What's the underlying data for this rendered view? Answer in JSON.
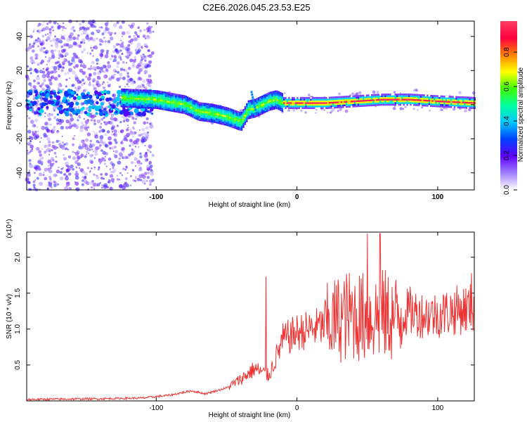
{
  "title": "C2E6.2026.045.23.53.E25",
  "chart_data": [
    {
      "type": "heatmap",
      "name": "spectrogram",
      "xlabel": "Height of straight line (km)",
      "ylabel": "Frequency (Hz)",
      "xlim": [
        -192,
        126
      ],
      "ylim": [
        -50,
        49
      ],
      "xticks": [
        -100,
        0,
        100
      ],
      "xtick_labels": [
        "-100",
        "0",
        "100"
      ],
      "yticks": [
        -40,
        -20,
        0,
        20,
        40
      ],
      "ytick_labels": [
        "-40",
        "-20",
        "0",
        "20",
        "40"
      ],
      "colorbar": {
        "label": "Normalized spectral amplitude",
        "range": [
          0,
          0.98
        ],
        "ticks": [
          0,
          0.2,
          0.4,
          0.6,
          0.8
        ],
        "tick_labels": [
          "0.0",
          "0.2",
          "0.4",
          "0.6",
          "0.8"
        ],
        "colormap": [
          "#ffffff",
          "#a080ff",
          "#6000ff",
          "#0040ff",
          "#00c8ff",
          "#00ffa0",
          "#40ff00",
          "#ffff00",
          "#ff8000",
          "#ff0040",
          "#ff4060"
        ]
      },
      "ridge": {
        "x": [
          -125,
          -100,
          -80,
          -70,
          -60,
          -50,
          -40,
          -35,
          -30,
          -25,
          -20,
          -15,
          -10,
          0,
          20,
          40,
          60,
          80,
          100,
          126
        ],
        "y": [
          4,
          3,
          0,
          -4,
          -5,
          -7,
          -10,
          -3,
          -2,
          0,
          2,
          3,
          1,
          1,
          1,
          2,
          3,
          3,
          2,
          1
        ]
      },
      "spike": {
        "x": -33,
        "y": 8
      }
    },
    {
      "type": "line",
      "name": "snr",
      "xlabel": "Height of straight line (km)",
      "ylabel": "SNR (10 * v/v)",
      "scale_label": "(x10⁴)",
      "xlim": [
        -192,
        126
      ],
      "ylim": [
        0,
        2.35
      ],
      "xticks": [
        -100,
        0,
        100
      ],
      "xtick_labels": [
        "-100",
        "0",
        "100"
      ],
      "yticks": [
        0.5,
        1.0,
        1.5,
        2.0
      ],
      "ytick_labels": [
        "0.5",
        "1.0",
        "1.5",
        "2.0"
      ],
      "color": "#ee3333",
      "series": [
        {
          "name": "SNR",
          "x": [
            -192,
            -140,
            -110,
            -90,
            -75,
            -65,
            -50,
            -40,
            -30,
            -20,
            -10,
            0,
            10,
            20,
            30,
            40,
            50,
            60,
            70,
            80,
            90,
            100,
            110,
            126
          ],
          "y": [
            0.02,
            0.03,
            0.04,
            0.08,
            0.14,
            0.1,
            0.18,
            0.3,
            0.45,
            0.35,
            0.85,
            0.95,
            1.0,
            1.05,
            1.15,
            1.2,
            1.15,
            1.2,
            1.15,
            1.25,
            1.2,
            1.2,
            1.25,
            1.3
          ]
        }
      ],
      "peaks": [
        {
          "x": -22,
          "y": 1.73
        },
        {
          "x": 50,
          "y": 2.33
        },
        {
          "x": 59,
          "y": 2.33
        },
        {
          "x": 124,
          "y": 1.78
        }
      ]
    }
  ]
}
